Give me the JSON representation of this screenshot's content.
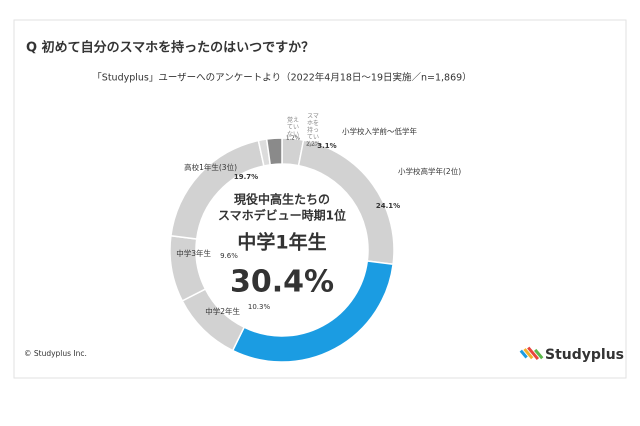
{
  "chart_data": {
    "type": "donut",
    "title": "Q 初めて自分のスマホを持ったのはいつですか？",
    "subtitle": "「Studyplus」ユーザーへのアンケートより（2022年4月18日～19日実施／n=1,869）",
    "categories": [
      "小学校入学前～低学年",
      "小学校高学年(2位)",
      "中学1年生",
      "中学2年生",
      "中学3年生",
      "高校1年生(3位)",
      "覚えていない",
      "スマホを持っていない"
    ],
    "values": [
      3.1,
      24.1,
      30.4,
      10.3,
      9.6,
      19.7,
      1.2,
      2.2
    ],
    "value_labels": [
      "3.1%",
      "24.1%",
      "30.4%",
      "10.3%",
      "9.6%",
      "19.7%",
      "1.2%",
      "2.2%"
    ],
    "colors": [
      "#d2d2d2",
      "#d2d2d2",
      "#1b9ce2",
      "#d2d2d2",
      "#d2d2d2",
      "#d2d2d2",
      "#dcdcdc",
      "#8a8a8a"
    ],
    "center_text": [
      "現役中高生たちの",
      "スマホデビュー時期1位"
    ],
    "copyright": "© Studyplus Inc.",
    "logo": "Studyplus"
  }
}
